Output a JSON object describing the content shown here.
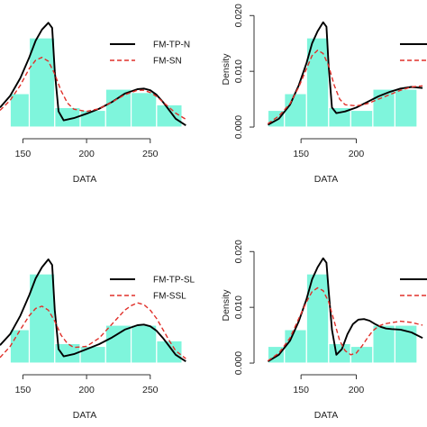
{
  "colors": {
    "bar_fill": "#7ff5dc",
    "bar_edge": "#ffffff",
    "density_line": "#000000",
    "fitted_dashed": "#e0302a",
    "axis": "#333333"
  },
  "chart_data": [
    {
      "panel": "top-left",
      "type": "bar",
      "xlabel": "DATA",
      "ylabel": "",
      "xlim": [
        132,
        282
      ],
      "ylim": [
        -0.0008,
        0.0215
      ],
      "xticks": [
        150,
        200,
        250
      ],
      "yticks": [],
      "grid": false,
      "legend_position": "top-right",
      "legend": [
        {
          "label": "FM-TP-N",
          "style": "solid"
        },
        {
          "label": "FM-SN",
          "style": "dashed"
        }
      ],
      "bins": [
        {
          "x0": 140,
          "x1": 155,
          "value": 0.006
        },
        {
          "x0": 155,
          "x1": 175,
          "value": 0.016
        },
        {
          "x0": 175,
          "x1": 195,
          "value": 0.0035
        },
        {
          "x0": 195,
          "x1": 215,
          "value": 0.003
        },
        {
          "x0": 215,
          "x1": 235,
          "value": 0.0068
        },
        {
          "x0": 235,
          "x1": 255,
          "value": 0.0062
        },
        {
          "x0": 255,
          "x1": 275,
          "value": 0.004
        }
      ],
      "series": [
        {
          "style": "solid",
          "x": [
            132,
            140,
            148,
            155,
            160,
            165,
            170,
            173,
            175,
            178,
            182,
            190,
            200,
            210,
            220,
            230,
            240,
            245,
            250,
            255,
            260,
            265,
            270,
            278
          ],
          "y": [
            0.0035,
            0.0056,
            0.0088,
            0.0125,
            0.0155,
            0.0175,
            0.0187,
            0.0178,
            0.01,
            0.0028,
            0.0012,
            0.0016,
            0.0024,
            0.0033,
            0.0045,
            0.006,
            0.0068,
            0.0069,
            0.0066,
            0.0058,
            0.0045,
            0.003,
            0.0015,
            0.0003
          ]
        },
        {
          "style": "dashed",
          "x": [
            132,
            140,
            148,
            155,
            160,
            165,
            170,
            175,
            180,
            185,
            190,
            200,
            210,
            220,
            230,
            240,
            245,
            250,
            255,
            260,
            265,
            270,
            278
          ],
          "y": [
            0.003,
            0.0048,
            0.0075,
            0.0105,
            0.012,
            0.0125,
            0.0118,
            0.0095,
            0.0065,
            0.0043,
            0.0032,
            0.0028,
            0.0033,
            0.0045,
            0.0058,
            0.0066,
            0.0066,
            0.0062,
            0.0055,
            0.0045,
            0.0035,
            0.0025,
            0.0014
          ]
        }
      ]
    },
    {
      "panel": "top-right",
      "type": "bar",
      "xlabel": "DATA",
      "ylabel": "Density",
      "xlim": [
        114,
        264
      ],
      "ylim": [
        -0.0008,
        0.0215
      ],
      "xticks": [
        150,
        200
      ],
      "yticks": [
        0.0,
        0.01,
        0.02
      ],
      "ytick_labels": [
        "0.000",
        "0.010",
        "0.020"
      ],
      "grid": false,
      "legend_position": "top-right",
      "legend": [
        {
          "label": "",
          "style": "solid"
        },
        {
          "label": "",
          "style": "dashed"
        }
      ],
      "bins": [
        {
          "x0": 120,
          "x1": 135,
          "value": 0.003
        },
        {
          "x0": 135,
          "x1": 155,
          "value": 0.006
        },
        {
          "x0": 155,
          "x1": 175,
          "value": 0.016
        },
        {
          "x0": 175,
          "x1": 195,
          "value": 0.0035
        },
        {
          "x0": 195,
          "x1": 215,
          "value": 0.003
        },
        {
          "x0": 215,
          "x1": 235,
          "value": 0.0068
        },
        {
          "x0": 235,
          "x1": 255,
          "value": 0.0068
        }
      ],
      "series": [
        {
          "style": "solid",
          "x": [
            120,
            130,
            140,
            148,
            155,
            160,
            165,
            170,
            173,
            175,
            178,
            182,
            190,
            200,
            210,
            220,
            230,
            240,
            250,
            260
          ],
          "y": [
            0.0004,
            0.0015,
            0.004,
            0.0075,
            0.0115,
            0.015,
            0.0172,
            0.0188,
            0.018,
            0.011,
            0.0035,
            0.0025,
            0.0028,
            0.0035,
            0.0045,
            0.0055,
            0.0063,
            0.0069,
            0.0072,
            0.007
          ]
        },
        {
          "style": "dashed",
          "x": [
            120,
            130,
            140,
            148,
            155,
            160,
            165,
            170,
            175,
            180,
            185,
            190,
            200,
            210,
            220,
            230,
            240,
            250,
            260
          ],
          "y": [
            0.0006,
            0.002,
            0.0042,
            0.0072,
            0.0105,
            0.0128,
            0.0138,
            0.0132,
            0.011,
            0.0075,
            0.005,
            0.004,
            0.0038,
            0.0042,
            0.005,
            0.0058,
            0.0066,
            0.0072,
            0.0074
          ]
        }
      ]
    },
    {
      "panel": "bottom-left",
      "type": "bar",
      "xlabel": "DATA",
      "ylabel": "",
      "xlim": [
        132,
        282
      ],
      "ylim": [
        -0.0008,
        0.0215
      ],
      "xticks": [
        150,
        200,
        250
      ],
      "yticks": [],
      "grid": false,
      "legend_position": "top-right",
      "legend": [
        {
          "label": "FM-TP-SL",
          "style": "solid"
        },
        {
          "label": "FM-SSL",
          "style": "dashed"
        }
      ],
      "bins": [
        {
          "x0": 140,
          "x1": 155,
          "value": 0.006
        },
        {
          "x0": 155,
          "x1": 175,
          "value": 0.016
        },
        {
          "x0": 175,
          "x1": 195,
          "value": 0.0035
        },
        {
          "x0": 195,
          "x1": 215,
          "value": 0.003
        },
        {
          "x0": 215,
          "x1": 235,
          "value": 0.0068
        },
        {
          "x0": 235,
          "x1": 255,
          "value": 0.0068
        },
        {
          "x0": 255,
          "x1": 275,
          "value": 0.004
        }
      ],
      "series": [
        {
          "style": "solid",
          "x": [
            132,
            140,
            148,
            155,
            160,
            165,
            170,
            173,
            175,
            178,
            182,
            190,
            200,
            210,
            220,
            230,
            240,
            245,
            250,
            255,
            260,
            265,
            270,
            278
          ],
          "y": [
            0.0032,
            0.0052,
            0.0085,
            0.0122,
            0.0152,
            0.0172,
            0.0186,
            0.0176,
            0.0095,
            0.0025,
            0.0012,
            0.0016,
            0.0025,
            0.0034,
            0.0046,
            0.006,
            0.0068,
            0.0069,
            0.0066,
            0.0058,
            0.0045,
            0.003,
            0.0015,
            0.0003
          ]
        },
        {
          "style": "dashed",
          "x": [
            132,
            140,
            148,
            155,
            160,
            165,
            170,
            175,
            180,
            185,
            190,
            200,
            210,
            220,
            230,
            235,
            240,
            245,
            250,
            255,
            260,
            265,
            270,
            278
          ],
          "y": [
            0.001,
            0.003,
            0.006,
            0.0085,
            0.0098,
            0.0102,
            0.0095,
            0.0075,
            0.005,
            0.0035,
            0.0028,
            0.003,
            0.0045,
            0.007,
            0.0095,
            0.0103,
            0.0108,
            0.0105,
            0.0095,
            0.008,
            0.006,
            0.004,
            0.0022,
            0.0008
          ]
        }
      ]
    },
    {
      "panel": "bottom-right",
      "type": "bar",
      "xlabel": "DATA",
      "ylabel": "Density",
      "xlim": [
        114,
        264
      ],
      "ylim": [
        -0.0008,
        0.0215
      ],
      "xticks": [
        150,
        200
      ],
      "yticks": [
        0.0,
        0.01,
        0.02
      ],
      "ytick_labels": [
        "0.000",
        "0.010",
        "0.020"
      ],
      "grid": false,
      "legend_position": "top-right",
      "legend": [
        {
          "label": "",
          "style": "solid"
        },
        {
          "label": "",
          "style": "dashed"
        }
      ],
      "bins": [
        {
          "x0": 120,
          "x1": 135,
          "value": 0.003
        },
        {
          "x0": 135,
          "x1": 155,
          "value": 0.006
        },
        {
          "x0": 155,
          "x1": 175,
          "value": 0.016
        },
        {
          "x0": 175,
          "x1": 195,
          "value": 0.0035
        },
        {
          "x0": 195,
          "x1": 215,
          "value": 0.003
        },
        {
          "x0": 215,
          "x1": 235,
          "value": 0.0068
        },
        {
          "x0": 235,
          "x1": 255,
          "value": 0.0068
        }
      ],
      "series": [
        {
          "style": "solid",
          "x": [
            120,
            130,
            140,
            148,
            155,
            160,
            165,
            170,
            173,
            175,
            178,
            182,
            187,
            192,
            197,
            202,
            207,
            212,
            217,
            222,
            227,
            232,
            240,
            250,
            260
          ],
          "y": [
            0.0003,
            0.0015,
            0.004,
            0.0075,
            0.0115,
            0.015,
            0.0172,
            0.0188,
            0.018,
            0.013,
            0.006,
            0.0015,
            0.0025,
            0.0052,
            0.007,
            0.0078,
            0.0079,
            0.0076,
            0.007,
            0.0065,
            0.0062,
            0.0061,
            0.006,
            0.0055,
            0.0045
          ]
        },
        {
          "style": "dashed",
          "x": [
            120,
            130,
            140,
            148,
            155,
            160,
            165,
            170,
            175,
            180,
            185,
            190,
            195,
            200,
            205,
            210,
            215,
            220,
            225,
            230,
            240,
            250,
            260
          ],
          "y": [
            0.0004,
            0.0018,
            0.0045,
            0.008,
            0.011,
            0.0128,
            0.0135,
            0.013,
            0.011,
            0.0075,
            0.004,
            0.0022,
            0.0015,
            0.0018,
            0.003,
            0.0045,
            0.0058,
            0.0066,
            0.007,
            0.0072,
            0.0075,
            0.0073,
            0.0068
          ]
        }
      ]
    }
  ]
}
